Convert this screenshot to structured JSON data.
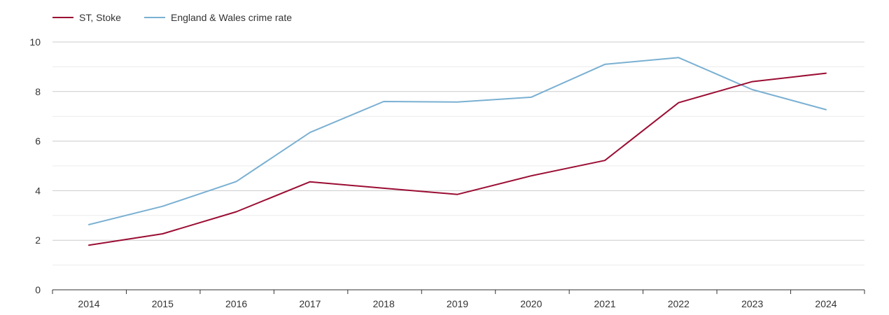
{
  "chart_data": {
    "type": "line",
    "title": "",
    "xlabel": "",
    "ylabel": "",
    "categories": [
      "2014",
      "2015",
      "2016",
      "2017",
      "2018",
      "2019",
      "2020",
      "2021",
      "2022",
      "2023",
      "2024"
    ],
    "ylim": [
      0,
      10
    ],
    "y_ticks": [
      0,
      2,
      4,
      6,
      8,
      10
    ],
    "y_tick_labels": [
      "0",
      "2",
      "4",
      "6",
      "8",
      "10"
    ],
    "minor_grid": [
      1,
      3,
      5,
      7,
      9
    ],
    "legend_position": "top-left",
    "series": [
      {
        "name": "ST, Stoke",
        "color": "#9b0d33",
        "values": [
          1.8,
          2.26,
          3.15,
          4.36,
          4.1,
          3.85,
          4.6,
          5.22,
          7.55,
          8.4,
          8.74
        ]
      },
      {
        "name": "England & Wales crime rate",
        "color": "#7ab0d2",
        "values": [
          2.63,
          3.37,
          4.37,
          6.35,
          7.6,
          7.58,
          7.77,
          9.1,
          9.37,
          8.08,
          7.27
        ]
      }
    ]
  }
}
